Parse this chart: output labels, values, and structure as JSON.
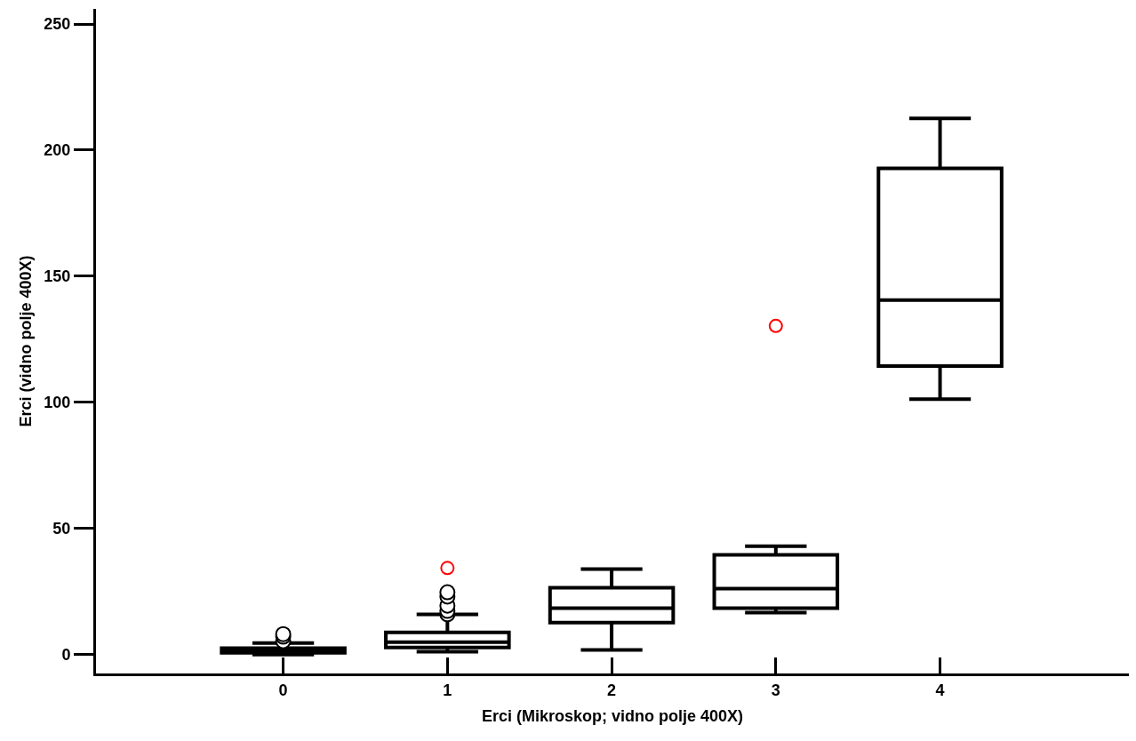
{
  "chart_data": {
    "type": "box",
    "xlabel": "Erci (Mikroskop; vidno polje 400X)",
    "ylabel": "Erci (vidno polje 400X)",
    "categories": [
      "0",
      "1",
      "2",
      "3",
      "4"
    ],
    "series": [
      {
        "type": "box",
        "color": "#000000",
        "boxes": [
          {
            "low": 0,
            "q1": 0.7,
            "median": 1.5,
            "q3": 2.5,
            "high": 4.6,
            "outliers": [
              5.3,
              7.1,
              8.1
            ]
          },
          {
            "low": 1.1,
            "q1": 2.8,
            "median": 4.9,
            "q3": 8.8,
            "high": 15.9,
            "outliers": [
              16,
              17.3,
              19.4,
              23,
              24.7
            ]
          },
          {
            "low": 1.8,
            "q1": 12.7,
            "median": 18.4,
            "q3": 26.5,
            "high": 33.9
          },
          {
            "low": 16.6,
            "q1": 18.4,
            "median": 26.1,
            "q3": 39.5,
            "high": 43
          },
          {
            "low": 101.3,
            "q1": 114.4,
            "median": 140.5,
            "q3": 192.8,
            "high": 212.6
          }
        ]
      },
      {
        "type": "scatter",
        "color": "#ff0000",
        "marker": "circle",
        "x": [
          "1",
          "3"
        ],
        "values": [
          34.3,
          130.3
        ]
      }
    ],
    "ylim": [
      -7.5,
      256
    ],
    "yticks": [
      0,
      50,
      100,
      150,
      200,
      250
    ],
    "grid": false
  }
}
